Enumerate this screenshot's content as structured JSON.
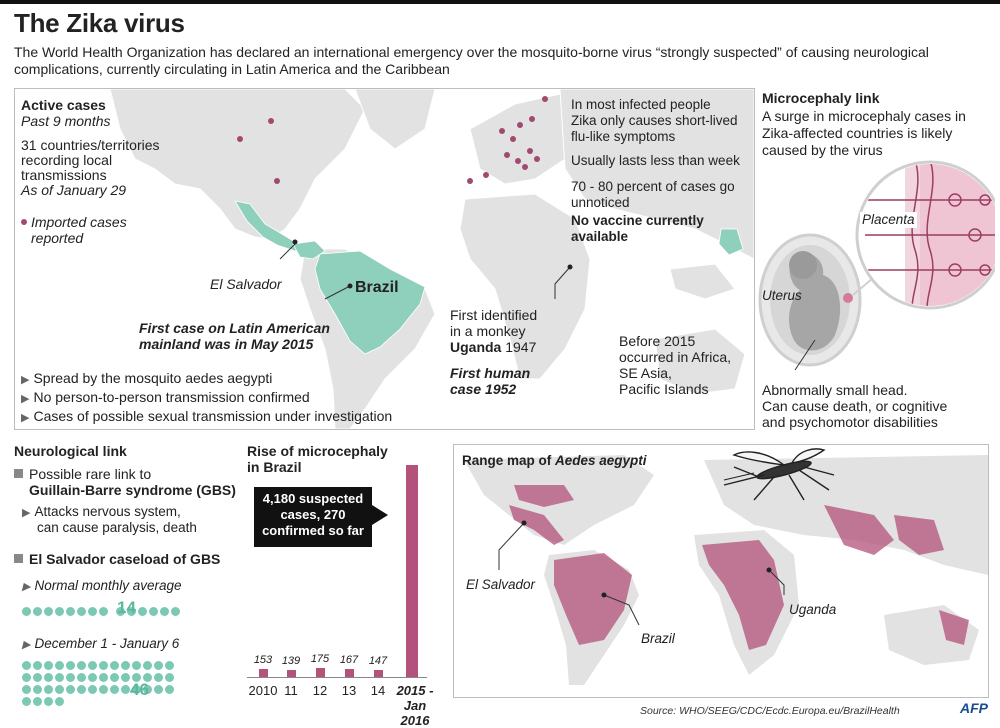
{
  "header": {
    "title": "The Zika virus",
    "subtitle": "The World Health Organization has declared an international emergency over the  mosquito-borne virus “strongly suspected” of causing neurological complications, currently circulating in Latin America and the Caribbean"
  },
  "active_cases": {
    "heading": "Active cases",
    "period": "Past 9 months",
    "countries_line1": "31 countries/territories",
    "countries_line2": "recording local",
    "countries_line3": "transmissions",
    "as_of": "As of January 29",
    "imported_line1": "Imported cases",
    "imported_line2": "reported"
  },
  "map_labels": {
    "el_salvador": "El Salvador",
    "brazil": "Brazil",
    "first_case_line1": "First case on Latin American",
    "first_case_line2": "mainland was in May 2015",
    "first_identified_line1": "First identified",
    "first_identified_line2": "in a monkey",
    "uganda": "Uganda",
    "uganda_year": "1947",
    "first_human_line1": "First human",
    "first_human_line2": "case 1952",
    "before_2015_line1": "Before 2015",
    "before_2015_line2": "occurred in Africa,",
    "before_2015_line3": "SE Asia,",
    "before_2015_line4": "Pacific Islands"
  },
  "facts": {
    "f1_line1": "In most infected people",
    "f1_line2": "Zika only causes short-lived",
    "f1_line3": "flu-like symptoms",
    "f2": "Usually lasts less than week",
    "f3_line1": "70 - 80 percent of cases go",
    "f3_line2": "unnoticed",
    "f4_line1": "No vaccine currently",
    "f4_line2": "available"
  },
  "spread": [
    "Spread by the mosquito aedes aegypti",
    "No person-to-person transmission confirmed",
    "Cases of possible sexual transmission under investigation"
  ],
  "microcephaly": {
    "heading": "Microcephaly link",
    "text_line1": "A surge in microcephaly cases in",
    "text_line2": "Zika-affected countries is likely",
    "text_line3": "caused by the virus",
    "placenta": "Placenta",
    "uterus": "Uterus",
    "desc_line1": "Abnormally small head.",
    "desc_line2": "Can cause death, or cognitive",
    "desc_line3": "and psychomotor disabilities"
  },
  "neuro": {
    "heading": "Neurological link",
    "gbs_line1": "Possible rare link to",
    "gbs_line2": "Guillain-Barre syndrome (GBS)",
    "attack_line1": "Attacks nervous system,",
    "attack_line2": "can cause paralysis, death",
    "caseload": "El Salvador caseload of GBS",
    "normal_label": "Normal monthly average",
    "normal_value": "14",
    "dec_label": "December 1 - January 6",
    "dec_value": "46"
  },
  "chart_data": {
    "type": "bar",
    "title": "Rise of microcephaly in Brazil",
    "categories": [
      "2010",
      "11",
      "12",
      "13",
      "14",
      "2015 - Jan 2016"
    ],
    "values": [
      153,
      139,
      175,
      167,
      147,
      4180
    ],
    "callout": "4,180 suspected cases, 270 confirmed so far",
    "callout_lines": [
      "4,180 suspected",
      "cases, 270",
      "confirmed so far"
    ],
    "last_label_line1": "2015 -",
    "last_label_line2": "Jan 2016"
  },
  "range_map": {
    "heading_prefix": "Range map of ",
    "heading_species": "Aedes aegypti",
    "el_salvador": "El Salvador",
    "brazil": "Brazil",
    "uganda": "Uganda"
  },
  "footer": {
    "source": "Source: WHO/SEEG/CDC/Ecdc.Europa.eu/BrazilHealth",
    "logo": "AFP"
  },
  "colors": {
    "teal": "#7bc9b3",
    "magenta": "#b3527a",
    "land": "#e3e3e3"
  }
}
